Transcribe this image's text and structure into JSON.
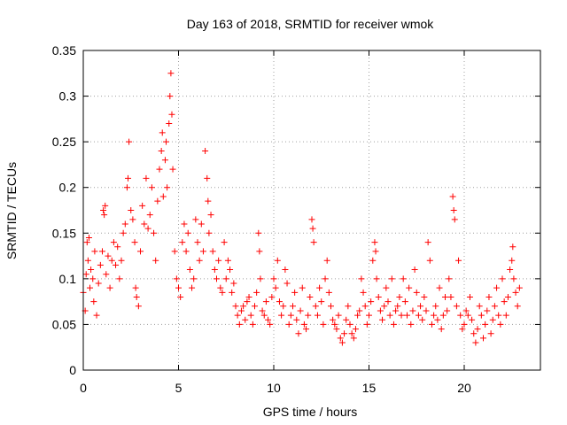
{
  "chart_data": {
    "type": "scatter",
    "title": "Day 163 of 2018, SRMTID for receiver wmok",
    "xlabel": "GPS time / hours",
    "ylabel": "SRMTID / TECUs",
    "xlim": [
      0,
      24
    ],
    "ylim": [
      0,
      0.35
    ],
    "xticks": [
      0,
      5,
      10,
      15,
      20
    ],
    "xtick_labels": [
      "0",
      "5",
      "10",
      "15",
      "20"
    ],
    "yticks": [
      0,
      0.05,
      0.1,
      0.15,
      0.2,
      0.25,
      0.3,
      0.35
    ],
    "ytick_labels": [
      "0",
      "0.05",
      "0.1",
      "0.15",
      "0.2",
      "0.25",
      "0.3",
      "0.35"
    ],
    "grid": true,
    "marker": "plus",
    "series": [
      {
        "name": "SRMTID",
        "color": "#ff0000",
        "points": [
          [
            0.0,
            0.085
          ],
          [
            0.1,
            0.065
          ],
          [
            0.15,
            0.105
          ],
          [
            0.2,
            0.14
          ],
          [
            0.25,
            0.12
          ],
          [
            0.3,
            0.145
          ],
          [
            0.35,
            0.09
          ],
          [
            0.4,
            0.11
          ],
          [
            0.5,
            0.1
          ],
          [
            0.55,
            0.075
          ],
          [
            0.6,
            0.13
          ],
          [
            0.7,
            0.06
          ],
          [
            0.8,
            0.095
          ],
          [
            0.9,
            0.115
          ],
          [
            1.0,
            0.13
          ],
          [
            1.05,
            0.175
          ],
          [
            1.1,
            0.17
          ],
          [
            1.15,
            0.18
          ],
          [
            1.2,
            0.105
          ],
          [
            1.3,
            0.125
          ],
          [
            1.4,
            0.09
          ],
          [
            1.5,
            0.12
          ],
          [
            1.6,
            0.14
          ],
          [
            1.7,
            0.115
          ],
          [
            1.8,
            0.135
          ],
          [
            1.9,
            0.1
          ],
          [
            2.0,
            0.12
          ],
          [
            2.1,
            0.15
          ],
          [
            2.2,
            0.16
          ],
          [
            2.3,
            0.2
          ],
          [
            2.35,
            0.21
          ],
          [
            2.4,
            0.25
          ],
          [
            2.5,
            0.175
          ],
          [
            2.6,
            0.165
          ],
          [
            2.7,
            0.14
          ],
          [
            2.75,
            0.09
          ],
          [
            2.8,
            0.08
          ],
          [
            2.9,
            0.07
          ],
          [
            3.0,
            0.13
          ],
          [
            3.1,
            0.18
          ],
          [
            3.2,
            0.16
          ],
          [
            3.3,
            0.21
          ],
          [
            3.4,
            0.155
          ],
          [
            3.5,
            0.17
          ],
          [
            3.6,
            0.2
          ],
          [
            3.7,
            0.15
          ],
          [
            3.8,
            0.12
          ],
          [
            3.9,
            0.185
          ],
          [
            4.0,
            0.22
          ],
          [
            4.1,
            0.24
          ],
          [
            4.15,
            0.26
          ],
          [
            4.2,
            0.19
          ],
          [
            4.3,
            0.23
          ],
          [
            4.35,
            0.25
          ],
          [
            4.4,
            0.2
          ],
          [
            4.5,
            0.27
          ],
          [
            4.55,
            0.3
          ],
          [
            4.6,
            0.325
          ],
          [
            4.65,
            0.28
          ],
          [
            4.7,
            0.22
          ],
          [
            4.8,
            0.13
          ],
          [
            4.9,
            0.1
          ],
          [
            5.0,
            0.09
          ],
          [
            5.1,
            0.08
          ],
          [
            5.2,
            0.14
          ],
          [
            5.3,
            0.16
          ],
          [
            5.4,
            0.13
          ],
          [
            5.5,
            0.15
          ],
          [
            5.6,
            0.11
          ],
          [
            5.7,
            0.09
          ],
          [
            5.8,
            0.1
          ],
          [
            5.9,
            0.165
          ],
          [
            6.0,
            0.14
          ],
          [
            6.1,
            0.12
          ],
          [
            6.2,
            0.16
          ],
          [
            6.3,
            0.13
          ],
          [
            6.4,
            0.24
          ],
          [
            6.5,
            0.21
          ],
          [
            6.55,
            0.185
          ],
          [
            6.6,
            0.15
          ],
          [
            6.7,
            0.17
          ],
          [
            6.8,
            0.13
          ],
          [
            6.9,
            0.11
          ],
          [
            7.0,
            0.1
          ],
          [
            7.1,
            0.12
          ],
          [
            7.2,
            0.09
          ],
          [
            7.3,
            0.085
          ],
          [
            7.4,
            0.14
          ],
          [
            7.5,
            0.1
          ],
          [
            7.6,
            0.12
          ],
          [
            7.7,
            0.11
          ],
          [
            7.8,
            0.085
          ],
          [
            7.9,
            0.095
          ],
          [
            8.0,
            0.07
          ],
          [
            8.1,
            0.06
          ],
          [
            8.2,
            0.05
          ],
          [
            8.3,
            0.065
          ],
          [
            8.4,
            0.07
          ],
          [
            8.5,
            0.055
          ],
          [
            8.6,
            0.075
          ],
          [
            8.7,
            0.08
          ],
          [
            8.8,
            0.06
          ],
          [
            8.9,
            0.05
          ],
          [
            9.0,
            0.07
          ],
          [
            9.1,
            0.085
          ],
          [
            9.2,
            0.15
          ],
          [
            9.25,
            0.13
          ],
          [
            9.3,
            0.1
          ],
          [
            9.4,
            0.065
          ],
          [
            9.5,
            0.06
          ],
          [
            9.6,
            0.075
          ],
          [
            9.7,
            0.055
          ],
          [
            9.8,
            0.05
          ],
          [
            9.9,
            0.08
          ],
          [
            10.0,
            0.1
          ],
          [
            10.1,
            0.09
          ],
          [
            10.2,
            0.12
          ],
          [
            10.3,
            0.075
          ],
          [
            10.4,
            0.06
          ],
          [
            10.5,
            0.07
          ],
          [
            10.6,
            0.11
          ],
          [
            10.7,
            0.095
          ],
          [
            10.8,
            0.05
          ],
          [
            10.9,
            0.06
          ],
          [
            11.0,
            0.07
          ],
          [
            11.1,
            0.085
          ],
          [
            11.2,
            0.055
          ],
          [
            11.3,
            0.04
          ],
          [
            11.4,
            0.065
          ],
          [
            11.5,
            0.09
          ],
          [
            11.6,
            0.05
          ],
          [
            11.7,
            0.045
          ],
          [
            11.8,
            0.06
          ],
          [
            11.9,
            0.08
          ],
          [
            12.0,
            0.165
          ],
          [
            12.05,
            0.155
          ],
          [
            12.1,
            0.14
          ],
          [
            12.2,
            0.07
          ],
          [
            12.3,
            0.06
          ],
          [
            12.4,
            0.09
          ],
          [
            12.5,
            0.075
          ],
          [
            12.6,
            0.05
          ],
          [
            12.7,
            0.1
          ],
          [
            12.8,
            0.12
          ],
          [
            12.9,
            0.085
          ],
          [
            13.0,
            0.07
          ],
          [
            13.1,
            0.055
          ],
          [
            13.2,
            0.05
          ],
          [
            13.3,
            0.045
          ],
          [
            13.4,
            0.06
          ],
          [
            13.5,
            0.035
          ],
          [
            13.6,
            0.03
          ],
          [
            13.7,
            0.04
          ],
          [
            13.8,
            0.055
          ],
          [
            13.9,
            0.07
          ],
          [
            14.0,
            0.05
          ],
          [
            14.1,
            0.04
          ],
          [
            14.2,
            0.035
          ],
          [
            14.3,
            0.045
          ],
          [
            14.4,
            0.06
          ],
          [
            14.5,
            0.065
          ],
          [
            14.6,
            0.1
          ],
          [
            14.7,
            0.085
          ],
          [
            14.8,
            0.07
          ],
          [
            14.9,
            0.05
          ],
          [
            15.0,
            0.06
          ],
          [
            15.1,
            0.075
          ],
          [
            15.2,
            0.12
          ],
          [
            15.3,
            0.14
          ],
          [
            15.35,
            0.13
          ],
          [
            15.4,
            0.1
          ],
          [
            15.5,
            0.08
          ],
          [
            15.6,
            0.065
          ],
          [
            15.7,
            0.055
          ],
          [
            15.8,
            0.07
          ],
          [
            15.9,
            0.09
          ],
          [
            16.0,
            0.075
          ],
          [
            16.1,
            0.06
          ],
          [
            16.2,
            0.1
          ],
          [
            16.3,
            0.05
          ],
          [
            16.4,
            0.065
          ],
          [
            16.5,
            0.07
          ],
          [
            16.6,
            0.08
          ],
          [
            16.7,
            0.06
          ],
          [
            16.8,
            0.1
          ],
          [
            16.9,
            0.075
          ],
          [
            17.0,
            0.06
          ],
          [
            17.1,
            0.09
          ],
          [
            17.2,
            0.05
          ],
          [
            17.3,
            0.065
          ],
          [
            17.4,
            0.11
          ],
          [
            17.5,
            0.085
          ],
          [
            17.6,
            0.06
          ],
          [
            17.7,
            0.07
          ],
          [
            17.8,
            0.055
          ],
          [
            17.9,
            0.08
          ],
          [
            18.0,
            0.065
          ],
          [
            18.1,
            0.14
          ],
          [
            18.2,
            0.12
          ],
          [
            18.3,
            0.05
          ],
          [
            18.4,
            0.06
          ],
          [
            18.5,
            0.07
          ],
          [
            18.6,
            0.055
          ],
          [
            18.7,
            0.09
          ],
          [
            18.8,
            0.045
          ],
          [
            18.9,
            0.06
          ],
          [
            19.0,
            0.08
          ],
          [
            19.1,
            0.065
          ],
          [
            19.2,
            0.1
          ],
          [
            19.3,
            0.08
          ],
          [
            19.4,
            0.19
          ],
          [
            19.45,
            0.175
          ],
          [
            19.5,
            0.165
          ],
          [
            19.6,
            0.07
          ],
          [
            19.7,
            0.12
          ],
          [
            19.8,
            0.06
          ],
          [
            19.9,
            0.045
          ],
          [
            20.0,
            0.05
          ],
          [
            20.1,
            0.065
          ],
          [
            20.2,
            0.06
          ],
          [
            20.3,
            0.08
          ],
          [
            20.4,
            0.055
          ],
          [
            20.5,
            0.04
          ],
          [
            20.6,
            0.03
          ],
          [
            20.7,
            0.045
          ],
          [
            20.8,
            0.07
          ],
          [
            20.9,
            0.06
          ],
          [
            21.0,
            0.035
          ],
          [
            21.1,
            0.05
          ],
          [
            21.2,
            0.065
          ],
          [
            21.3,
            0.08
          ],
          [
            21.4,
            0.04
          ],
          [
            21.5,
            0.055
          ],
          [
            21.6,
            0.07
          ],
          [
            21.7,
            0.09
          ],
          [
            21.8,
            0.06
          ],
          [
            21.9,
            0.05
          ],
          [
            22.0,
            0.1
          ],
          [
            22.1,
            0.075
          ],
          [
            22.2,
            0.06
          ],
          [
            22.3,
            0.08
          ],
          [
            22.4,
            0.11
          ],
          [
            22.5,
            0.12
          ],
          [
            22.55,
            0.135
          ],
          [
            22.6,
            0.1
          ],
          [
            22.7,
            0.085
          ],
          [
            22.8,
            0.07
          ],
          [
            22.9,
            0.09
          ]
        ]
      }
    ]
  }
}
